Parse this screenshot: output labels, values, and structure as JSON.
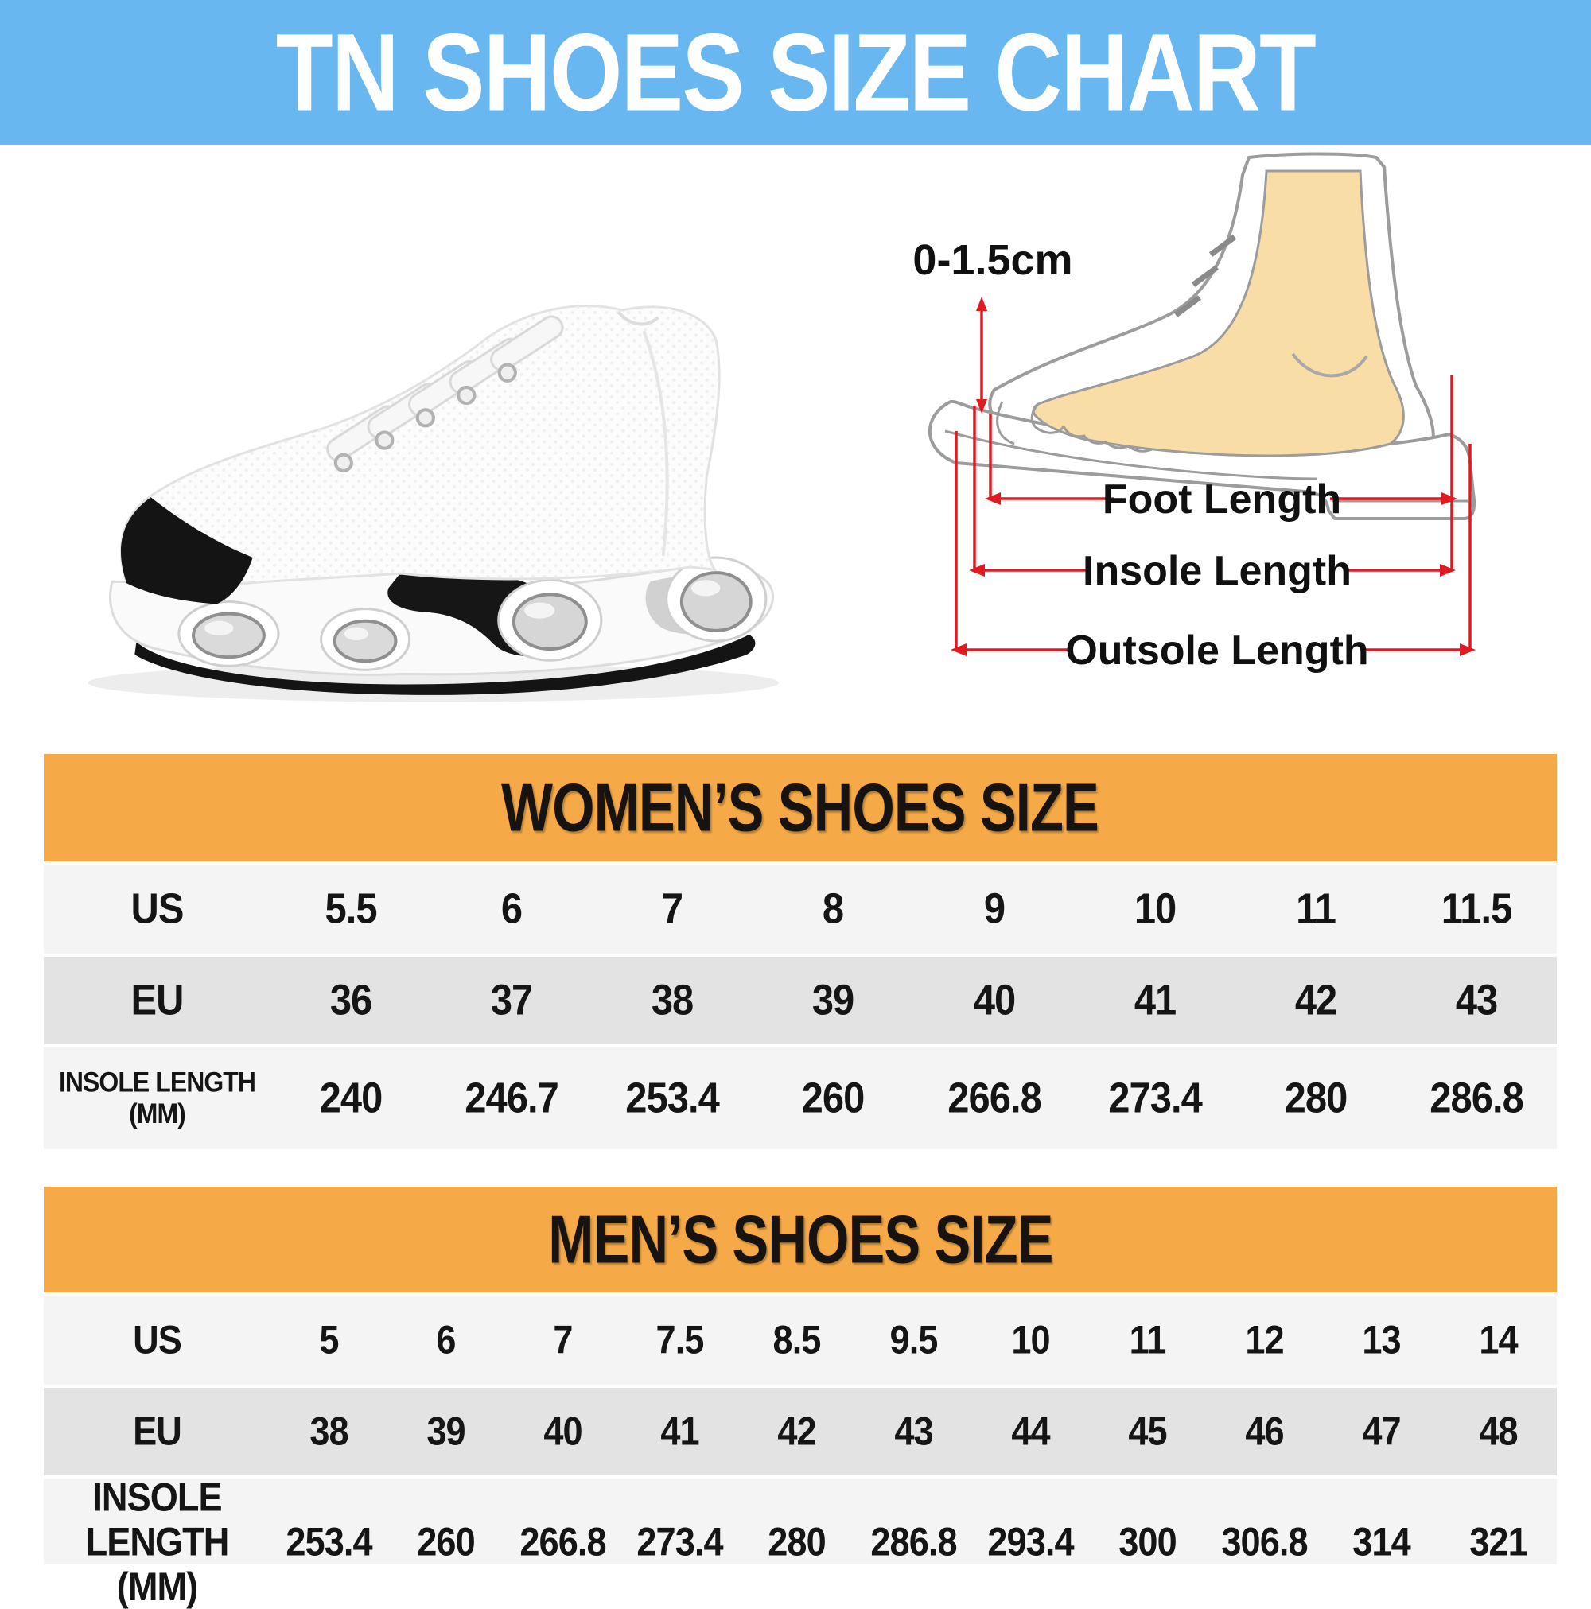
{
  "page": {
    "title": "TN SHOES SIZE CHART"
  },
  "colors": {
    "banner_blue": "#68B7F1",
    "table_header_orange": "#F5A947",
    "row_light": "#F5F4F5",
    "row_dark": "#E4E3E4",
    "measure_red": "#E11A22",
    "foot_skin": "#F9DDA7",
    "outline_gray": "#9C9C9C",
    "text_black": "#151515"
  },
  "diagram": {
    "toe_gap_label": "0-1.5cm",
    "labels": {
      "foot": "Foot Length",
      "insole": "Insole Length",
      "outsole": "Outsole Length"
    }
  },
  "chart_data": [
    {
      "type": "table",
      "title": "WOMEN’S SHOES SIZE",
      "rows": [
        {
          "label_lines": [
            "US"
          ],
          "values": [
            "5.5",
            "6",
            "7",
            "8",
            "9",
            "10",
            "11",
            "11.5"
          ]
        },
        {
          "label_lines": [
            "EU"
          ],
          "values": [
            "36",
            "37",
            "38",
            "39",
            "40",
            "41",
            "42",
            "43"
          ]
        },
        {
          "label_lines": [
            "INSOLE LENGTH",
            "(MM)"
          ],
          "values": [
            "240",
            "246.7",
            "253.4",
            "260",
            "266.8",
            "273.4",
            "280",
            "286.8"
          ]
        }
      ]
    },
    {
      "type": "table",
      "title": "MEN’S SHOES SIZE",
      "rows": [
        {
          "label_lines": [
            "US"
          ],
          "values": [
            "5",
            "6",
            "7",
            "7.5",
            "8.5",
            "9.5",
            "10",
            "11",
            "12",
            "13",
            "14"
          ]
        },
        {
          "label_lines": [
            "EU"
          ],
          "values": [
            "38",
            "39",
            "40",
            "41",
            "42",
            "43",
            "44",
            "45",
            "46",
            "47",
            "48"
          ]
        },
        {
          "label_lines": [
            "INSOLE LENGTH",
            "(MM)"
          ],
          "values": [
            "253.4",
            "260",
            "266.8",
            "273.4",
            "280",
            "286.8",
            "293.4",
            "300",
            "306.8",
            "314",
            "321"
          ]
        }
      ]
    }
  ]
}
